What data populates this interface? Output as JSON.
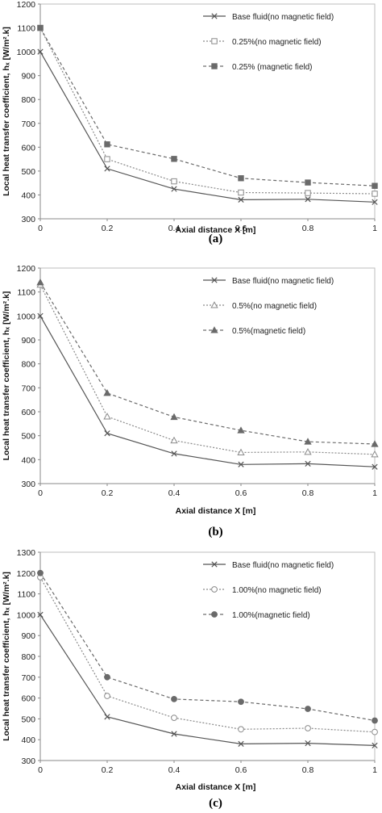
{
  "chart_data": [
    {
      "type": "line",
      "panel_label": "(a)",
      "xlabel": "Axial distance X [m]",
      "ylabel": "Local heat transfer coefficient, hₓ [W/m².k]",
      "x": [
        0,
        0.2,
        0.4,
        0.6,
        0.8,
        1
      ],
      "x_ticks": [
        "0",
        "0.2",
        "0.4",
        "0.6",
        "0.8",
        "1"
      ],
      "ylim": [
        300,
        1200
      ],
      "y_ticks": [
        "300",
        "400",
        "500",
        "600",
        "700",
        "800",
        "900",
        "1000",
        "1100",
        "1200"
      ],
      "legend_position": "top-right",
      "series": [
        {
          "name": "Base fluid(no magnetic field)",
          "values": [
            1000,
            510,
            425,
            380,
            382,
            370
          ],
          "marker": "x",
          "line": "solid",
          "color": "#555555"
        },
        {
          "name": "0.25%(no magnetic field)",
          "values": [
            1100,
            550,
            457,
            410,
            408,
            405
          ],
          "marker": "open-square",
          "line": "dotted",
          "color": "#8a8a8a"
        },
        {
          "name": "0.25% (magnetic field)",
          "values": [
            1100,
            612,
            551,
            470,
            452,
            438
          ],
          "marker": "filled-square",
          "line": "dashed",
          "color": "#6a6a6a"
        }
      ]
    },
    {
      "type": "line",
      "panel_label": "(b)",
      "xlabel": "Axial distance X [m]",
      "ylabel": "Local heat transfer coefficient, hₓ [W/m².k]",
      "x": [
        0,
        0.2,
        0.4,
        0.6,
        0.8,
        1
      ],
      "x_ticks": [
        "0",
        "0.2",
        "0.4",
        "0.6",
        "0.8",
        "1"
      ],
      "ylim": [
        300,
        1200
      ],
      "y_ticks": [
        "300",
        "400",
        "500",
        "600",
        "700",
        "800",
        "900",
        "1000",
        "1100",
        "1200"
      ],
      "legend_position": "top-right",
      "series": [
        {
          "name": "Base fluid(no magnetic field)",
          "values": [
            1000,
            510,
            425,
            380,
            383,
            370
          ],
          "marker": "x",
          "line": "solid",
          "color": "#555555"
        },
        {
          "name": "0.5%(no magnetic field)",
          "values": [
            1130,
            580,
            480,
            430,
            432,
            422
          ],
          "marker": "open-triangle",
          "line": "dotted",
          "color": "#8a8a8a"
        },
        {
          "name": "0.5%(magnetic field)",
          "values": [
            1140,
            678,
            578,
            522,
            475,
            465
          ],
          "marker": "filled-triangle",
          "line": "dashed",
          "color": "#6a6a6a"
        }
      ]
    },
    {
      "type": "line",
      "panel_label": "(c)",
      "xlabel": "Axial distance X [m]",
      "ylabel": "Local heat transfer coefficient, hₓ [W/m².k]",
      "x": [
        0,
        0.2,
        0.4,
        0.6,
        0.8,
        1
      ],
      "x_ticks": [
        "0",
        "0.2",
        "0.4",
        "0.6",
        "0.8",
        "1"
      ],
      "ylim": [
        300,
        1300
      ],
      "y_ticks": [
        "300",
        "400",
        "500",
        "600",
        "700",
        "800",
        "900",
        "1000",
        "1100",
        "1200",
        "1300"
      ],
      "legend_position": "top-right",
      "series": [
        {
          "name": "Base fluid(no magnetic field)",
          "values": [
            1000,
            510,
            428,
            380,
            383,
            372
          ],
          "marker": "x",
          "line": "solid",
          "color": "#555555"
        },
        {
          "name": "1.00%(no magnetic field)",
          "values": [
            1180,
            610,
            505,
            450,
            455,
            437
          ],
          "marker": "open-circle",
          "line": "dotted",
          "color": "#8a8a8a"
        },
        {
          "name": "1.00%(magnetic field)",
          "values": [
            1200,
            700,
            595,
            582,
            548,
            492
          ],
          "marker": "filled-circle",
          "line": "dashed",
          "color": "#6a6a6a"
        }
      ]
    }
  ]
}
